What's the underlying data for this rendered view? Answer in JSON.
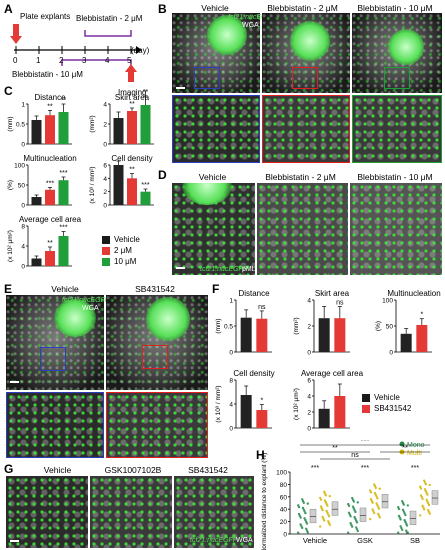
{
  "panel_labels": {
    "A": "A",
    "B": "B",
    "C": "C",
    "D": "D",
    "E": "E",
    "F": "F",
    "G": "G",
    "H": "H"
  },
  "panelA": {
    "plate": "Plate explants",
    "bleb2": "Blebbistatin - 2 μM",
    "bleb10": "Blebbistatin - 10 μM",
    "imaging": "Imaging",
    "day_unit": "(day)",
    "ticks": [
      "0",
      "1",
      "2",
      "3",
      "4",
      "5"
    ]
  },
  "panelB": {
    "titles": [
      "Vehicle",
      "Blebbistatin - 2 μM",
      "Blebbistatin - 10 μM"
    ],
    "marker1": "tcf21:nucEGFP",
    "marker2": "WGA",
    "colors": {
      "vehicle": "#2a3fbf",
      "b2": "#e02020",
      "b10": "#1f9e3a"
    }
  },
  "panelD": {
    "titles": [
      "Vehicle",
      "Blebbistatin - 2 μM",
      "Blebbistatin - 10 μM"
    ],
    "marker1": "tcf21:nucEGFP",
    "marker2": "pMLC"
  },
  "panelE": {
    "titles": [
      "Vehicle",
      "SB431542"
    ],
    "marker1": "tcf21:nucEGFP",
    "marker2": "WGA"
  },
  "panelG": {
    "titles": [
      "Vehicle",
      "GSK1007102B",
      "SB431542"
    ],
    "marker1": "tcf21:nucEGFP",
    "marker2": "WGA"
  },
  "legendC": {
    "title": "",
    "items": [
      {
        "label": "Vehicle",
        "color": "#1a1a1a"
      },
      {
        "label": "2 μM",
        "color": "#e53935"
      },
      {
        "label": "10 μM",
        "color": "#1f9e3a"
      }
    ]
  },
  "legendF": {
    "items": [
      {
        "label": "Vehicle",
        "color": "#1a1a1a"
      },
      {
        "label": "SB431542",
        "color": "#e53935"
      }
    ]
  },
  "chart_data": [
    {
      "id": "C-distance",
      "type": "bar",
      "title": "Distance",
      "ylabel": "(mm)",
      "ylim": [
        0,
        1
      ],
      "yticks": [
        "0",
        "0.5",
        "1"
      ],
      "values": [
        0.6,
        0.72,
        0.8
      ],
      "errors": [
        0.1,
        0.12,
        0.2
      ],
      "sig": [
        "",
        "**",
        "**"
      ],
      "colors": [
        "#222222",
        "#e53935",
        "#1f9e3a"
      ]
    },
    {
      "id": "C-skirt",
      "type": "bar",
      "title": "Skirt area",
      "ylabel": "(mm²)",
      "ylim": [
        0,
        4
      ],
      "yticks": [
        "0",
        "2",
        "4"
      ],
      "values": [
        2.6,
        3.3,
        3.9
      ],
      "errors": [
        0.6,
        0.3,
        0.9
      ],
      "sig": [
        "",
        "**",
        "**"
      ],
      "colors": [
        "#222222",
        "#e53935",
        "#1f9e3a"
      ]
    },
    {
      "id": "C-multi",
      "type": "bar",
      "title": "Multinucleation",
      "ylabel": "(%)",
      "ylim": [
        0,
        100
      ],
      "yticks": [
        "0",
        "50",
        "100"
      ],
      "values": [
        20,
        38,
        62
      ],
      "errors": [
        5,
        6,
        8
      ],
      "sig": [
        "",
        "***",
        "***"
      ],
      "colors": [
        "#222222",
        "#e53935",
        "#1f9e3a"
      ]
    },
    {
      "id": "C-density",
      "type": "bar",
      "title": "Cell density",
      "ylabel": "(x 10³ / mm²)",
      "ylim": [
        0,
        6
      ],
      "yticks": [
        "0",
        "2",
        "4",
        "6"
      ],
      "values": [
        6.0,
        4.0,
        2.0
      ],
      "errors": [
        0.6,
        0.7,
        0.4
      ],
      "sig": [
        "",
        "**",
        "***"
      ],
      "colors": [
        "#222222",
        "#e53935",
        "#1f9e3a"
      ]
    },
    {
      "id": "C-area",
      "type": "bar",
      "title": "Average cell area",
      "ylabel": "(x 10² μm²)",
      "ylim": [
        0,
        8
      ],
      "yticks": [
        "0",
        "4",
        "8"
      ],
      "values": [
        1.5,
        3.0,
        6.0
      ],
      "errors": [
        0.5,
        0.8,
        0.9
      ],
      "sig": [
        "",
        "**",
        "***"
      ],
      "colors": [
        "#222222",
        "#e53935",
        "#1f9e3a"
      ]
    },
    {
      "id": "F-distance",
      "type": "bar",
      "title": "Distance",
      "ylabel": "(mm)",
      "ylim": [
        0,
        1
      ],
      "yticks": [
        "0",
        "0.5",
        "1"
      ],
      "values": [
        0.66,
        0.64
      ],
      "errors": [
        0.15,
        0.15
      ],
      "sig": [
        "",
        "ns"
      ],
      "colors": [
        "#222222",
        "#e53935"
      ]
    },
    {
      "id": "F-skirt",
      "type": "bar",
      "title": "Skirt area",
      "ylabel": "(mm²)",
      "ylim": [
        0,
        4
      ],
      "yticks": [
        "0",
        "2",
        "4"
      ],
      "values": [
        2.6,
        2.6
      ],
      "errors": [
        0.9,
        0.9
      ],
      "sig": [
        "",
        "ns"
      ],
      "colors": [
        "#222222",
        "#e53935"
      ]
    },
    {
      "id": "F-multi",
      "type": "bar",
      "title": "Multinucleation",
      "ylabel": "(%)",
      "ylim": [
        0,
        100
      ],
      "yticks": [
        "0",
        "50",
        "100"
      ],
      "values": [
        35,
        52
      ],
      "errors": [
        10,
        12
      ],
      "sig": [
        "",
        "*"
      ],
      "colors": [
        "#222222",
        "#e53935"
      ]
    },
    {
      "id": "F-density",
      "type": "bar",
      "title": "Cell density",
      "ylabel": "(x 10³ / mm²)",
      "ylim": [
        0,
        8
      ],
      "yticks": [
        "0",
        "4",
        "8"
      ],
      "values": [
        5.5,
        3.0
      ],
      "errors": [
        1.5,
        0.9
      ],
      "sig": [
        "",
        "*"
      ],
      "colors": [
        "#222222",
        "#e53935"
      ]
    },
    {
      "id": "F-area",
      "type": "bar",
      "title": "Average cell area",
      "ylabel": "(x 10² μm²)",
      "ylim": [
        0,
        6
      ],
      "yticks": [
        "0",
        "2",
        "4",
        "6"
      ],
      "values": [
        2.4,
        4.0
      ],
      "errors": [
        1.0,
        1.5
      ],
      "sig": [
        "",
        ""
      ],
      "colors": [
        "#222222",
        "#e53935"
      ]
    },
    {
      "id": "H",
      "type": "scatter",
      "ylabel": "Normalized distance to explant (%)",
      "ylim": [
        0,
        100
      ],
      "yticks": [
        "0",
        "20",
        "40",
        "60",
        "80",
        "100"
      ],
      "categories": [
        "Vehicle",
        "GSK",
        "SB"
      ],
      "series": [
        {
          "name": "Mono",
          "color": "#1f8a4a",
          "medians": [
            28,
            30,
            25
          ]
        },
        {
          "name": "Multi",
          "color": "#d4b400",
          "medians": [
            40,
            52,
            58
          ]
        }
      ],
      "sig_brackets": [
        "***",
        "**",
        "***",
        "ns",
        "**",
        "***",
        "***",
        "***",
        "***"
      ]
    }
  ]
}
